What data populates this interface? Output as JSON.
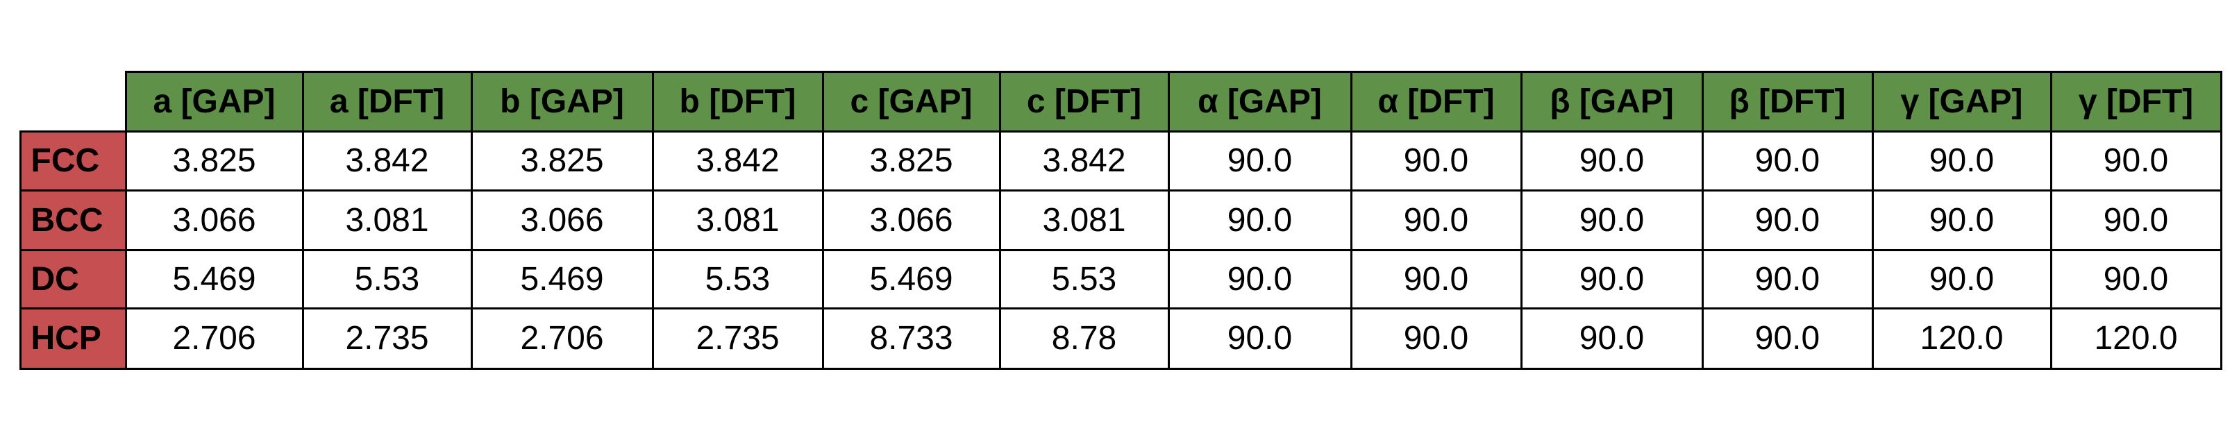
{
  "table": {
    "columns": [
      "a [GAP]",
      "a [DFT]",
      "b [GAP]",
      "b [DFT]",
      "c [GAP]",
      "c [DFT]",
      "α [GAP]",
      "α [DFT]",
      "β [GAP]",
      "β [DFT]",
      "γ [GAP]",
      "γ [DFT]"
    ],
    "rows": [
      {
        "label": "FCC",
        "cells": [
          "3.825",
          "3.842",
          "3.825",
          "3.842",
          "3.825",
          "3.842",
          "90.0",
          "90.0",
          "90.0",
          "90.0",
          "90.0",
          "90.0"
        ]
      },
      {
        "label": "BCC",
        "cells": [
          "3.066",
          "3.081",
          "3.066",
          "3.081",
          "3.066",
          "3.081",
          "90.0",
          "90.0",
          "90.0",
          "90.0",
          "90.0",
          "90.0"
        ]
      },
      {
        "label": "DC",
        "cells": [
          "5.469",
          "5.53",
          "5.469",
          "5.53",
          "5.469",
          "5.53",
          "90.0",
          "90.0",
          "90.0",
          "90.0",
          "90.0",
          "90.0"
        ]
      },
      {
        "label": "HCP",
        "cells": [
          "2.706",
          "2.735",
          "2.706",
          "2.735",
          "8.733",
          "8.78",
          "90.0",
          "90.0",
          "90.0",
          "90.0",
          "120.0",
          "120.0"
        ]
      }
    ]
  }
}
